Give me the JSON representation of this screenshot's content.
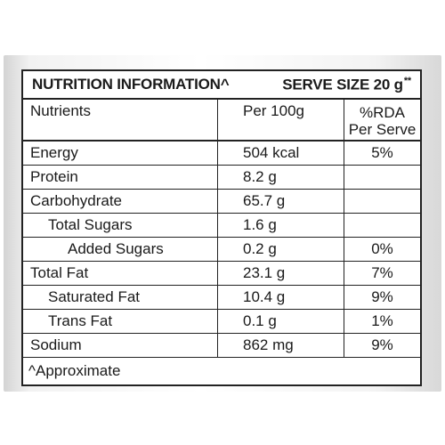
{
  "header": {
    "title": "NUTRITION INFORMATION^",
    "serve_size": "SERVE SIZE 20 g",
    "serve_size_mark": "**"
  },
  "columns": {
    "nutrients": "Nutrients",
    "per100": "Per 100g",
    "rda_line1": "%RDA",
    "rda_line2": "Per Serve"
  },
  "rows": [
    {
      "nutrient": "Energy",
      "per100": "504 kcal",
      "rda": "5%"
    },
    {
      "nutrient": "Protein",
      "per100": "8.2 g",
      "rda": ""
    },
    {
      "nutrient": "Carbohydrate",
      "per100": "65.7 g",
      "rda": ""
    },
    {
      "nutrient": "Total Sugars",
      "per100": "1.6 g",
      "rda": ""
    },
    {
      "nutrient": "Added Sugars",
      "per100": "0.2 g",
      "rda": "0%"
    },
    {
      "nutrient": "Total Fat",
      "per100": "23.1 g",
      "rda": "7%"
    },
    {
      "nutrient": "Saturated Fat",
      "per100": "10.4 g",
      "rda": "9%"
    },
    {
      "nutrient": "Trans Fat",
      "per100": "0.1 g",
      "rda": "1%"
    },
    {
      "nutrient": "Sodium",
      "per100": "862 mg",
      "rda": "9%"
    }
  ],
  "footnote": "^Approximate"
}
